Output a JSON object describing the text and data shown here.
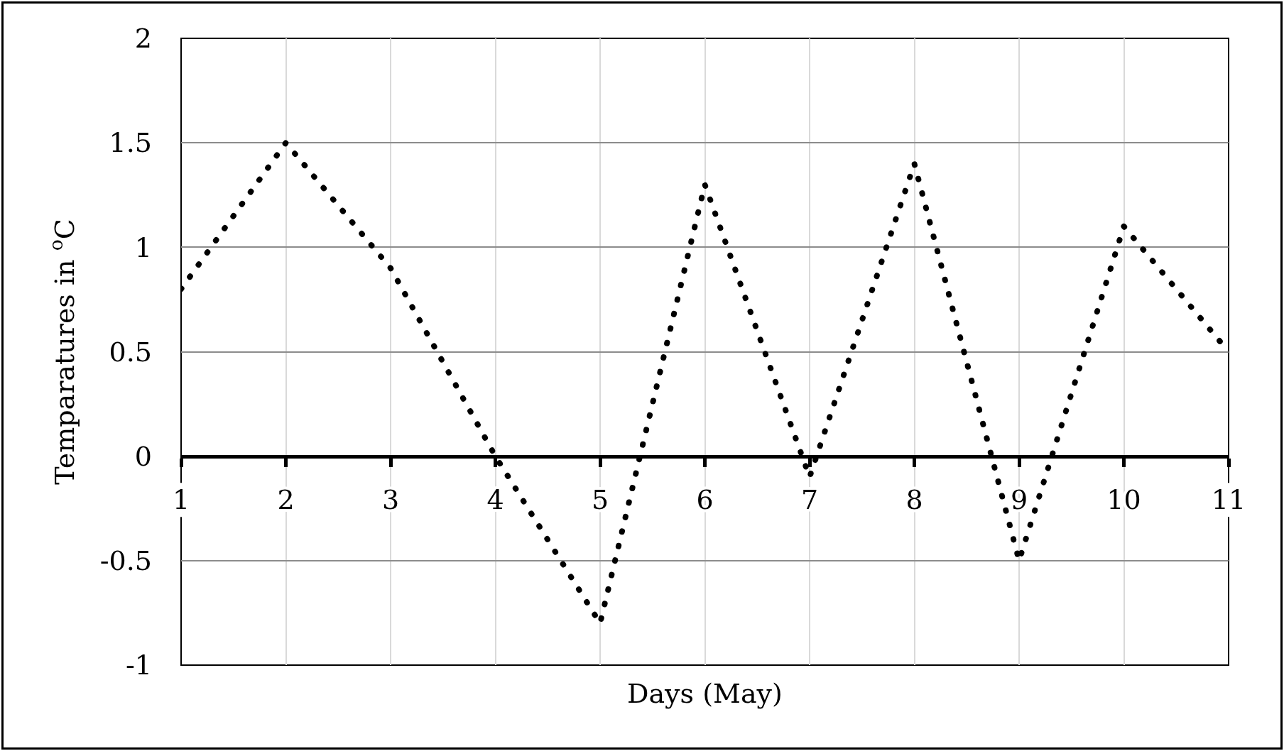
{
  "chart_data": {
    "type": "line",
    "xlabel": "Days (May)",
    "ylabel": "Temparatures in $^{o}$C",
    "x": [
      1,
      2,
      3,
      4,
      5,
      6,
      7,
      8,
      9,
      10,
      11
    ],
    "series": [
      {
        "color": "#000000",
        "values": [
          0.8,
          1.5,
          0.9,
          0,
          -0.8,
          1.3,
          -0.1,
          1.4,
          -0.5,
          1.1,
          0.5
        ]
      }
    ],
    "xlim": [
      1,
      11
    ],
    "xticks": [
      1,
      2,
      3,
      4,
      5,
      6,
      7,
      8,
      9,
      10,
      11
    ],
    "ylim": [
      -1,
      2
    ],
    "yticks": [
      -1,
      -0.5,
      0,
      0.5,
      1,
      1.5,
      2
    ],
    "grid": true,
    "line_style": "dotted"
  }
}
